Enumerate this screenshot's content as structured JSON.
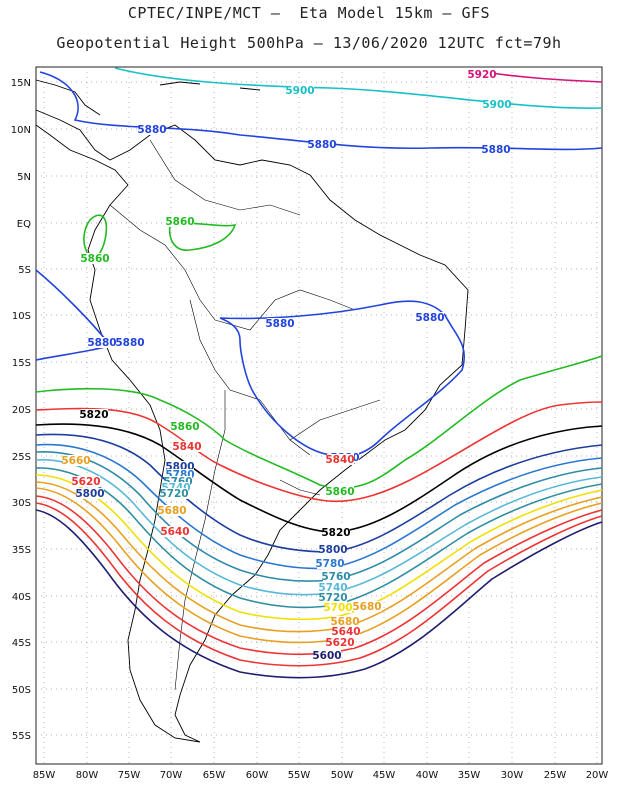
{
  "header": {
    "line1": "CPTEC/INPE/MCT –  Eta Model 15km – GFS",
    "line2": "Geopotential Height 500hPa – 13/06/2020 12UTC fct=79h"
  },
  "axes": {
    "lat_labels": [
      "15N",
      "10N",
      "5N",
      "EQ",
      "5S",
      "10S",
      "15S",
      "20S",
      "25S",
      "30S",
      "35S",
      "40S",
      "45S",
      "50S",
      "55S"
    ],
    "lon_labels": [
      "85W",
      "80W",
      "75W",
      "70W",
      "65W",
      "60W",
      "55W",
      "50W",
      "45W",
      "40W",
      "35W",
      "30W",
      "25W",
      "20W"
    ]
  },
  "contours": [
    {
      "value": "5920",
      "color": "#d4147a"
    },
    {
      "value": "5900",
      "color": "#19c0c8"
    },
    {
      "value": "5880",
      "color": "#2244dd"
    },
    {
      "value": "5860",
      "color": "#22bb22"
    },
    {
      "value": "5840",
      "color": "#ee3333"
    },
    {
      "value": "5820",
      "color": "#000000"
    },
    {
      "value": "5800",
      "color": "#1e3e9e"
    },
    {
      "value": "5780",
      "color": "#2a78d0"
    },
    {
      "value": "5760",
      "color": "#2e8ba8"
    },
    {
      "value": "5740",
      "color": "#58b8d8"
    },
    {
      "value": "5720",
      "color": "#2f8fa0"
    },
    {
      "value": "5700",
      "color": "#f0e000"
    },
    {
      "value": "5680",
      "color": "#e8a020"
    },
    {
      "value": "5660",
      "color": "#e8a020"
    },
    {
      "value": "5640",
      "color": "#ee3333"
    },
    {
      "value": "5620",
      "color": "#ee3333"
    },
    {
      "value": "5600",
      "color": "#1e1e70"
    }
  ]
}
